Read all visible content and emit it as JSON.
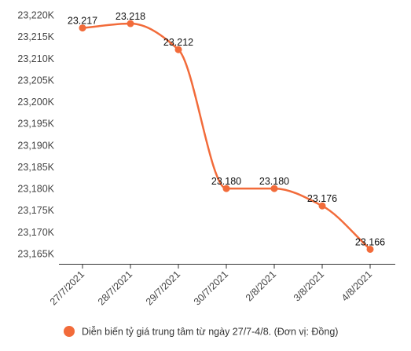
{
  "chart_data": {
    "type": "line",
    "categories": [
      "27/7/2021",
      "28/7/2021",
      "29/7/2021",
      "30/7/2021",
      "2/8/2021",
      "3/8/2021",
      "4/8/2021"
    ],
    "series": [
      {
        "name": "Diễn biến tỷ giá trung tâm từ ngày 27/7-4/8. (Đơn vị: Đồng)",
        "values": [
          23217,
          23218,
          23212,
          23180,
          23180,
          23176,
          23166
        ],
        "data_labels": [
          "23.217",
          "23.218",
          "23.212",
          "23.180",
          "23.180",
          "23.176",
          "23.166"
        ]
      }
    ],
    "ylim": [
      23165,
      23220
    ],
    "y_ticks": [
      23165,
      23170,
      23175,
      23180,
      23185,
      23190,
      23195,
      23200,
      23205,
      23210,
      23215,
      23220
    ],
    "y_tick_labels": [
      "23,165K",
      "23,170K",
      "23,175K",
      "23,180K",
      "23,185K",
      "23,190K",
      "23,195K",
      "23,200K",
      "23,205K",
      "23,210K",
      "23,215K",
      "23,220K"
    ],
    "legend_position": "bottom",
    "grid": false,
    "colors": {
      "series": "#F26B3A",
      "axis": "#333333",
      "text": "#444444"
    }
  }
}
